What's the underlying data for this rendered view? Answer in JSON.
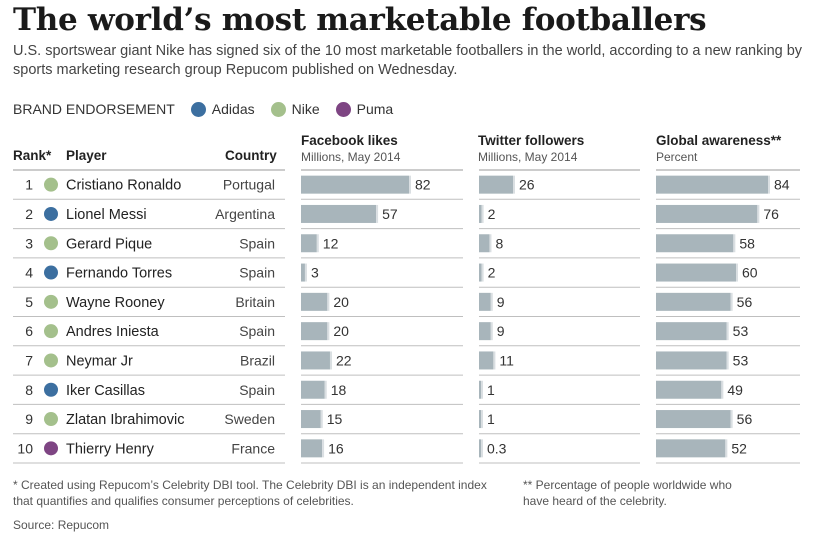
{
  "title": "The world’s most marketable footballers",
  "subtitle": "U.S. sportswear giant Nike has signed six of the 10 most marketable footballers in the world, according to a new ranking by sports marketing research group Repucom published on Wednesday.",
  "legend": {
    "title": "BRAND ENDORSEMENT",
    "items": [
      {
        "label": "Adidas",
        "color": "#3c6fa0"
      },
      {
        "label": "Nike",
        "color": "#a4c08c"
      },
      {
        "label": "Puma",
        "color": "#7e4583"
      }
    ]
  },
  "headers": {
    "rank": "Rank*",
    "player": "Player",
    "country": "Country"
  },
  "metrics": [
    {
      "key": "facebook",
      "title": "Facebook likes",
      "sub": "Millions, May 2014"
    },
    {
      "key": "twitter",
      "title": "Twitter followers",
      "sub": "Millions, May 2014"
    },
    {
      "key": "awareness",
      "title": "Global awareness**",
      "sub": "Percent"
    }
  ],
  "chart_data": {
    "type": "table",
    "rows": [
      {
        "rank": "1",
        "player": "Cristiano Ronaldo",
        "country": "Portugal",
        "brand": "Nike",
        "facebook": 82,
        "facebook_label": "82",
        "twitter": 26,
        "twitter_label": "26",
        "awareness": 84,
        "awareness_label": "84"
      },
      {
        "rank": "2",
        "player": "Lionel Messi",
        "country": "Argentina",
        "brand": "Adidas",
        "facebook": 57,
        "facebook_label": "57",
        "twitter": 2,
        "twitter_label": "2",
        "awareness": 76,
        "awareness_label": "76"
      },
      {
        "rank": "3",
        "player": "Gerard Pique",
        "country": "Spain",
        "brand": "Nike",
        "facebook": 12,
        "facebook_label": "12",
        "twitter": 8,
        "twitter_label": "8",
        "awareness": 58,
        "awareness_label": "58"
      },
      {
        "rank": "4",
        "player": "Fernando Torres",
        "country": "Spain",
        "brand": "Adidas",
        "facebook": 3,
        "facebook_label": "3",
        "twitter": 2,
        "twitter_label": "2",
        "awareness": 60,
        "awareness_label": "60"
      },
      {
        "rank": "5",
        "player": "Wayne Rooney",
        "country": "Britain",
        "brand": "Nike",
        "facebook": 20,
        "facebook_label": "20",
        "twitter": 9,
        "twitter_label": "9",
        "awareness": 56,
        "awareness_label": "56"
      },
      {
        "rank": "6",
        "player": "Andres Iniesta",
        "country": "Spain",
        "brand": "Nike",
        "facebook": 20,
        "facebook_label": "20",
        "twitter": 9,
        "twitter_label": "9",
        "awareness": 53,
        "awareness_label": "53"
      },
      {
        "rank": "7",
        "player": "Neymar Jr",
        "country": "Brazil",
        "brand": "Nike",
        "facebook": 22,
        "facebook_label": "22",
        "twitter": 11,
        "twitter_label": "11",
        "awareness": 53,
        "awareness_label": "53"
      },
      {
        "rank": "8",
        "player": "Iker Casillas",
        "country": "Spain",
        "brand": "Adidas",
        "facebook": 18,
        "facebook_label": "18",
        "twitter": 1,
        "twitter_label": "1",
        "awareness": 49,
        "awareness_label": "49"
      },
      {
        "rank": "9",
        "player": "Zlatan Ibrahimovic",
        "country": "Sweden",
        "brand": "Nike",
        "facebook": 15,
        "facebook_label": "15",
        "twitter": 1,
        "twitter_label": "1",
        "awareness": 56,
        "awareness_label": "56"
      },
      {
        "rank": "10",
        "player": "Thierry Henry",
        "country": "France",
        "brand": "Puma",
        "facebook": 16,
        "facebook_label": "16",
        "twitter": 0.3,
        "twitter_label": "0.3",
        "awareness": 52,
        "awareness_label": "52"
      }
    ],
    "colors": {
      "bar": "#a8b5bb",
      "bar_end": "#dadfe2",
      "rule": "#bfbfbf"
    }
  },
  "footnotes": {
    "left": "* Created using Repucom’s Celebrity DBI tool. The Celebrity DBI is an independent index that quantifies and qualifies consumer perceptions of celebrities.",
    "right": "** Percentage of people worldwide who have heard of the celebrity.",
    "source": "Source: Repucom"
  }
}
